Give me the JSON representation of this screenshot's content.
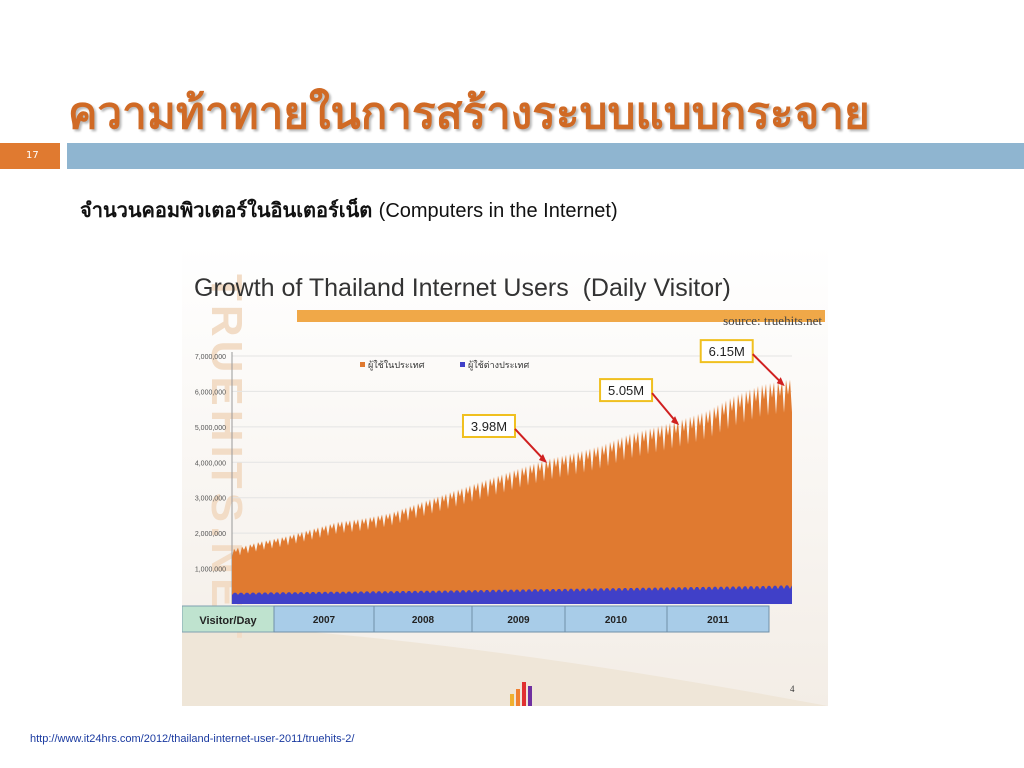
{
  "slide": {
    "title": "ความท้าทายในการสร้างระบบแบบกระจาย",
    "number": "17",
    "bullet_thai": "จำนวนคอมพิวเตอร์ในอินเตอร์เน็ต",
    "bullet_en": "(Computers in the Internet)",
    "source_url": "http://www.it24hrs.com/2012/thailand-internet-user-2011/truehits-2/"
  },
  "figure": {
    "watermark": "TRUEHITS.NET",
    "page_number": "4"
  },
  "chart_data": {
    "type": "area",
    "title": "Growth of Thailand Internet Users  (Daily Visitor)",
    "source": "source: truehits.net",
    "x_axis_label": "Visitor/Day",
    "categories": [
      "2007",
      "2008",
      "2009",
      "2010",
      "2011"
    ],
    "ylim": [
      0,
      7000000
    ],
    "y_ticks": [
      "7,000,000",
      "6,000,000",
      "5,000,000",
      "4,000,000",
      "3,000,000",
      "2,000,000",
      "1,000,000"
    ],
    "legend_position": "top",
    "series": [
      {
        "name": "ผู้ใช้ในประเทศ",
        "color": "#e07a30",
        "x": [
          2006.5,
          2006.75,
          2007.0,
          2007.25,
          2007.5,
          2007.75,
          2008.0,
          2008.25,
          2008.5,
          2008.75,
          2009.0,
          2009.25,
          2009.5,
          2009.75,
          2010.0,
          2010.25,
          2010.5,
          2010.75,
          2011.0,
          2011.25,
          2011.5,
          2011.75
        ],
        "values": [
          1500000,
          1700000,
          1850000,
          2050000,
          2250000,
          2350000,
          2500000,
          2750000,
          3000000,
          3250000,
          3500000,
          3750000,
          3980000,
          4150000,
          4350000,
          4650000,
          4850000,
          5050000,
          5300000,
          5700000,
          6000000,
          6150000
        ]
      },
      {
        "name": "ผู้ใช้ต่างประเทศ",
        "color": "#4040c8",
        "x": [
          2006.5,
          2007.5,
          2008.5,
          2009.5,
          2010.5,
          2011.5,
          2011.75
        ],
        "values": [
          300000,
          330000,
          360000,
          400000,
          440000,
          480000,
          500000
        ]
      }
    ],
    "annotations": [
      {
        "label": "3.98M",
        "x": 2009.5,
        "y": 3980000
      },
      {
        "label": "5.05M",
        "x": 2010.75,
        "y": 5050000
      },
      {
        "label": "6.15M",
        "x": 2011.75,
        "y": 6150000
      }
    ],
    "colors": {
      "title_bar": "#f0a848",
      "annotation_border": "#f0c020",
      "arrow": "#d02020",
      "year_box": "#a8cce8",
      "axis_label_box": "#bfe3cf"
    }
  }
}
